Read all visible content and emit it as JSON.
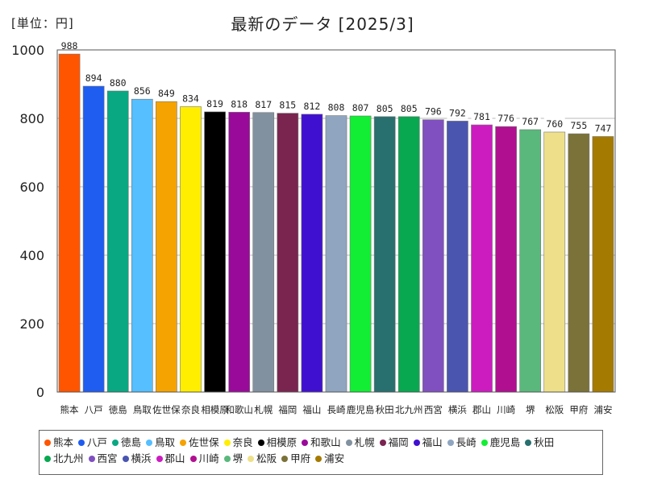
{
  "unit_label": "[単位：円]",
  "chart_data": {
    "type": "bar",
    "title": "最新のデータ [2025/3]",
    "categories": [
      "熊本",
      "八戸",
      "徳島",
      "鳥取",
      "佐世保",
      "奈良",
      "相模原",
      "和歌山",
      "札幌",
      "福岡",
      "福山",
      "長崎",
      "鹿児島",
      "秋田",
      "北九州",
      "西宮",
      "横浜",
      "郡山",
      "川崎",
      "堺",
      "松阪",
      "甲府",
      "浦安"
    ],
    "values": [
      988,
      894,
      880,
      856,
      849,
      834,
      819,
      818,
      817,
      815,
      812,
      808,
      807,
      805,
      805,
      796,
      792,
      781,
      776,
      767,
      760,
      755,
      747
    ],
    "colors": [
      "#ff5500",
      "#1f5cf0",
      "#0aa882",
      "#55bfff",
      "#f5a300",
      "#ffee00",
      "#000000",
      "#9a0a9a",
      "#8291a0",
      "#7a2550",
      "#4010d0",
      "#8fa5c0",
      "#11ee33",
      "#28706f",
      "#08a850",
      "#8050c0",
      "#4a55b0",
      "#cc1cc0",
      "#b01090",
      "#5ab87c",
      "#eee08a",
      "#7a7238",
      "#a57a00"
    ],
    "ylim": [
      0,
      1000
    ],
    "yticks": [
      0,
      200,
      400,
      600,
      800,
      1000
    ],
    "grid": true,
    "legend": "bottom"
  }
}
